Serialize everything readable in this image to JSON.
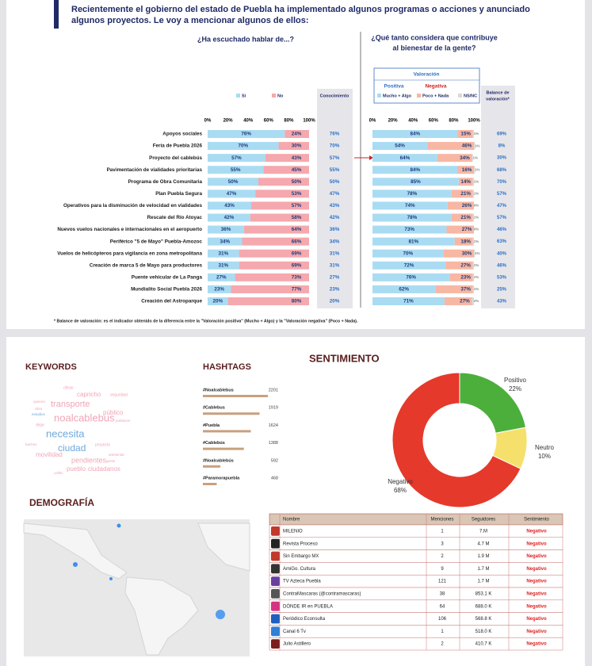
{
  "survey": {
    "title_lines": [
      "Recientemente el gobierno del estado de Puebla ha implementado algunos programas o acciones y anunciado",
      "algunos proyectos. Le voy a mencionar algunos de ellos:"
    ],
    "left_question": "¿Ha escuchado hablar de...?",
    "right_question": [
      "¿Qué tanto considera que contribuye",
      "al bienestar de la gente?"
    ],
    "valoracion": "Valoración",
    "positiva": "Positiva",
    "negativa": "Negativa",
    "balance_header": [
      "Balance de",
      "valoración*"
    ],
    "ticks": [
      {
        "value": 0,
        "label": "0%"
      },
      {
        "value": 20,
        "label": "20%"
      },
      {
        "value": 40,
        "label": "40%"
      },
      {
        "value": 60,
        "label": "60%"
      },
      {
        "value": 80,
        "label": "80%"
      },
      {
        "value": 100,
        "label": "100%"
      }
    ],
    "items": [
      "Apoyos sociales",
      "Feria de Puebla 2026",
      "Proyecto del cablebús",
      "Pavimentación de vialidades prioritarias",
      "Programa de Obra Comunitaria",
      "Plan Puebla Segura",
      "Operativos para la disminución de velocidad en vialidades",
      "Rescate del Río Atoyac",
      "Nuevos vuelos nacionales e internacionales en el aeropuerto",
      "Periférico \"5 de Mayo\" Puebla-Amozoc",
      "Vuelos de helicópteros para vigilancia en zona metropolitana",
      "Creación de marca 5 de Mayo para productores",
      "Puente vehicular de La Panga",
      "Mundialito Social Puebla 2026",
      "Creación del Astroparque"
    ],
    "series": [
      {
        "name": "Sí",
        "color": "#a9dcf3",
        "values": [
          76,
          70,
          57,
          55,
          50,
          47,
          43,
          42,
          36,
          34,
          31,
          31,
          27,
          23,
          20
        ],
        "value_labels": [
          "76%",
          "70%",
          "57%",
          "55%",
          "50%",
          "47%",
          "43%",
          "42%",
          "36%",
          "34%",
          "31%",
          "31%",
          "27%",
          "23%",
          "20%"
        ]
      },
      {
        "name": "No",
        "color": "#f5a8ad",
        "values": [
          24,
          30,
          43,
          45,
          50,
          53,
          57,
          58,
          64,
          66,
          69,
          69,
          73,
          77,
          80
        ],
        "value_labels": [
          "24%",
          "30%",
          "43%",
          "45%",
          "50%",
          "53%",
          "57%",
          "58%",
          "64%",
          "66%",
          "69%",
          "69%",
          "73%",
          "77%",
          "80%"
        ]
      },
      {
        "name": "Conocimiento",
        "color": "#2a6fc9",
        "values": [
          76,
          70,
          57,
          55,
          50,
          47,
          43,
          42,
          36,
          34,
          31,
          31,
          27,
          23,
          20
        ],
        "value_labels": [
          "76%",
          "70%",
          "57%",
          "55%",
          "50%",
          "47%",
          "43%",
          "42%",
          "36%",
          "34%",
          "31%",
          "31%",
          "27%",
          "23%",
          "20%"
        ]
      },
      {
        "name": "Mucho + Algo",
        "color": "#a9dcf3",
        "values": [
          84,
          54,
          64,
          84,
          85,
          78,
          74,
          78,
          73,
          81,
          70,
          72,
          76,
          62,
          71
        ],
        "value_labels": [
          "84%",
          "54%",
          "64%",
          "84%",
          "85%",
          "78%",
          "74%",
          "78%",
          "73%",
          "81%",
          "70%",
          "72%",
          "76%",
          "62%",
          "71%"
        ]
      },
      {
        "name": "Poco + Nada",
        "color": "#f7b7a3",
        "values": [
          15,
          46,
          34,
          16,
          14,
          21,
          26,
          21,
          27,
          18,
          30,
          27,
          23,
          37,
          27
        ],
        "value_labels": [
          "15%",
          "46%",
          "34%",
          "16%",
          "14%",
          "21%",
          "26%",
          "21%",
          "27%",
          "18%",
          "30%",
          "27%",
          "23%",
          "37%",
          "27%"
        ]
      },
      {
        "name": "NS/NC",
        "color": "#d9d9d9",
        "values": [
          1,
          1,
          1,
          1,
          1,
          1,
          0,
          1,
          0,
          1,
          1,
          1,
          1,
          1,
          2
        ],
        "value_labels": [
          "1%",
          "1%",
          "1%",
          "1%",
          "1%",
          "1%",
          "0%",
          "1%",
          "0%",
          "1%",
          "1%",
          "1%",
          "1%",
          "1%",
          "2%"
        ]
      },
      {
        "name": "Balance de valoración*",
        "color": "#2a6fc9",
        "values": [
          69,
          8,
          30,
          68,
          70,
          57,
          47,
          57,
          46,
          63,
          40,
          46,
          53,
          25,
          43
        ],
        "value_labels": [
          "69%",
          "8%",
          "30%",
          "68%",
          "70%",
          "57%",
          "47%",
          "57%",
          "46%",
          "63%",
          "40%",
          "46%",
          "53%",
          "25%",
          "43%"
        ]
      }
    ],
    "footnote": "* Balance de valoración: es el indicador obtenido de la diferencia entre la \"Valoración positiva\" (Mucho + Algo) y la \"Valoración negativa\" (Poco + Nada)."
  },
  "keywords": {
    "title": "KEYWORDS",
    "words": [
      "obras",
      "capricho",
      "seguridad",
      "quieren",
      "transporte",
      "obra",
      "estudios",
      "público",
      "poblanos",
      "dejar",
      "noalcablebus",
      "necesita",
      "baches",
      "proyecto",
      "ciudad",
      "movilidad",
      "ambiental",
      "pendientes",
      "gente",
      "calles",
      "pueblo",
      "ciudadanos"
    ]
  },
  "hashtags": {
    "title": "HASHTAGS",
    "items": [
      {
        "tag": "#Noalcablebus",
        "count": 2201
      },
      {
        "tag": "#Cablebus",
        "count": 1919
      },
      {
        "tag": "#Puebla",
        "count": 1624
      },
      {
        "tag": "#Cablebús",
        "count": 1388
      },
      {
        "tag": "#Noalcablebús",
        "count": 592
      },
      {
        "tag": "#Paramorapuebla",
        "count": 468
      }
    ]
  },
  "sentiment": {
    "title": "SENTIMIENTO",
    "slices": [
      {
        "name": "Positivo",
        "value": 22,
        "label": "22%",
        "color": "#4caf3c"
      },
      {
        "name": "Neutro",
        "value": 10,
        "label": "10%",
        "color": "#f6e06c"
      },
      {
        "name": "Negativo",
        "value": 68,
        "label": "68%",
        "color": "#e5392b"
      }
    ]
  },
  "demography": {
    "title": "DEMOGRAFÍA"
  },
  "media": {
    "columns": [
      "Nombre",
      "Menciones",
      "Seguidores",
      "Sentimiento"
    ],
    "rows": [
      [
        "MILENIO",
        "1",
        "7.M",
        "Negativo"
      ],
      [
        "Revista Proceso",
        "3",
        "4.7 M",
        "Negativo"
      ],
      [
        "Sin Embargo MX",
        "2",
        "1.9 M",
        "Negativo"
      ],
      [
        "AmiGo. Cultura",
        "9",
        "1.7 M",
        "Negativo"
      ],
      [
        "TV Azteca Puebla",
        "121",
        "1.7 M",
        "Negativo"
      ],
      [
        "ContraMascaras (@contramascaras)",
        "38",
        "853.1 K",
        "Negativo"
      ],
      [
        "DÓNDE IR en PUEBLA",
        "64",
        "688.0 K",
        "Negativo"
      ],
      [
        "Periódico Econsulta",
        "106",
        "568.8 K",
        "Negativo"
      ],
      [
        "Canal 6 Tv",
        "1",
        "518.0 K",
        "Negativo"
      ],
      [
        "Julio Astillero",
        "2",
        "410.7 K",
        "Negativo"
      ]
    ]
  }
}
